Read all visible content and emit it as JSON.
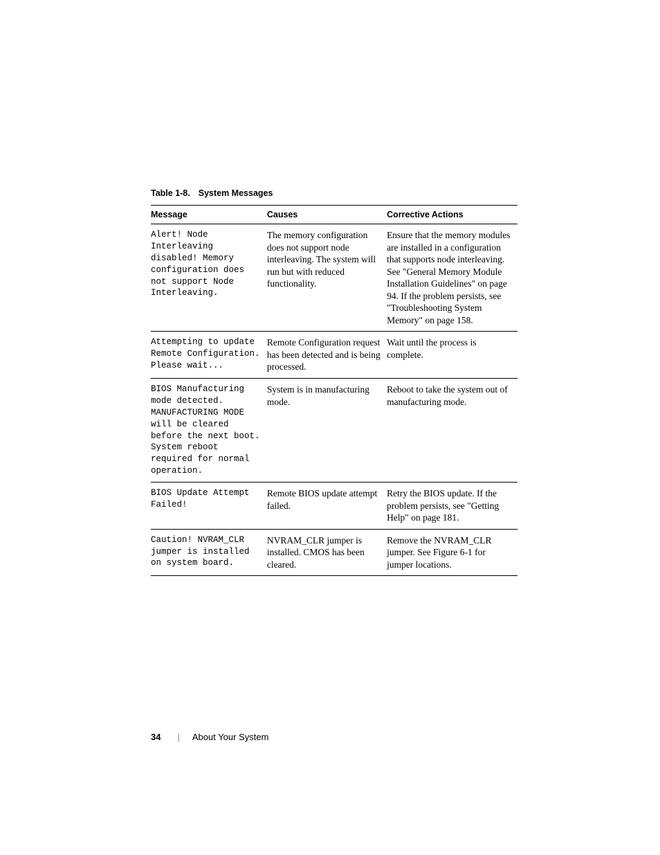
{
  "table": {
    "caption_number": "Table 1-8.",
    "caption_title": "System Messages",
    "headers": [
      "Message",
      "Causes",
      "Corrective Actions"
    ],
    "rows": [
      {
        "message": "Alert! Node Interleaving disabled! Memory configuration does not support Node Interleaving.",
        "cause": "The memory configuration does not support node interleaving.  The system will run but with reduced functionality.",
        "action": "Ensure that the memory modules are installed in a configuration that supports node interleaving. See \"General Memory Module Installation Guidelines\" on page 94. If the problem persists, see \"Troubleshooting System Memory\" on page 158."
      },
      {
        "message": "Attempting to update Remote Configuration. Please wait...",
        "cause": "Remote Configuration request has been detected and is being processed.",
        "action": "Wait until the process is complete."
      },
      {
        "message": "BIOS Manufacturing mode detected. MANUFACTURING MODE will be cleared before the next boot. System reboot required for normal operation.",
        "cause": "System is in manufacturing mode.",
        "action": "Reboot to take the system out of manufacturing mode."
      },
      {
        "message": "BIOS Update Attempt Failed!",
        "cause": "Remote BIOS update attempt failed.",
        "action": "Retry the BIOS update. If the problem persists, see \"Getting Help\" on page 181."
      },
      {
        "message": "Caution! NVRAM_CLR jumper is installed on system board.",
        "cause": "NVRAM_CLR jumper is installed. CMOS has been cleared.",
        "action": "Remove the NVRAM_CLR jumper. See Figure 6-1 for jumper locations."
      }
    ]
  },
  "footer": {
    "page_number": "34",
    "divider": "|",
    "section_name": "About Your System"
  }
}
